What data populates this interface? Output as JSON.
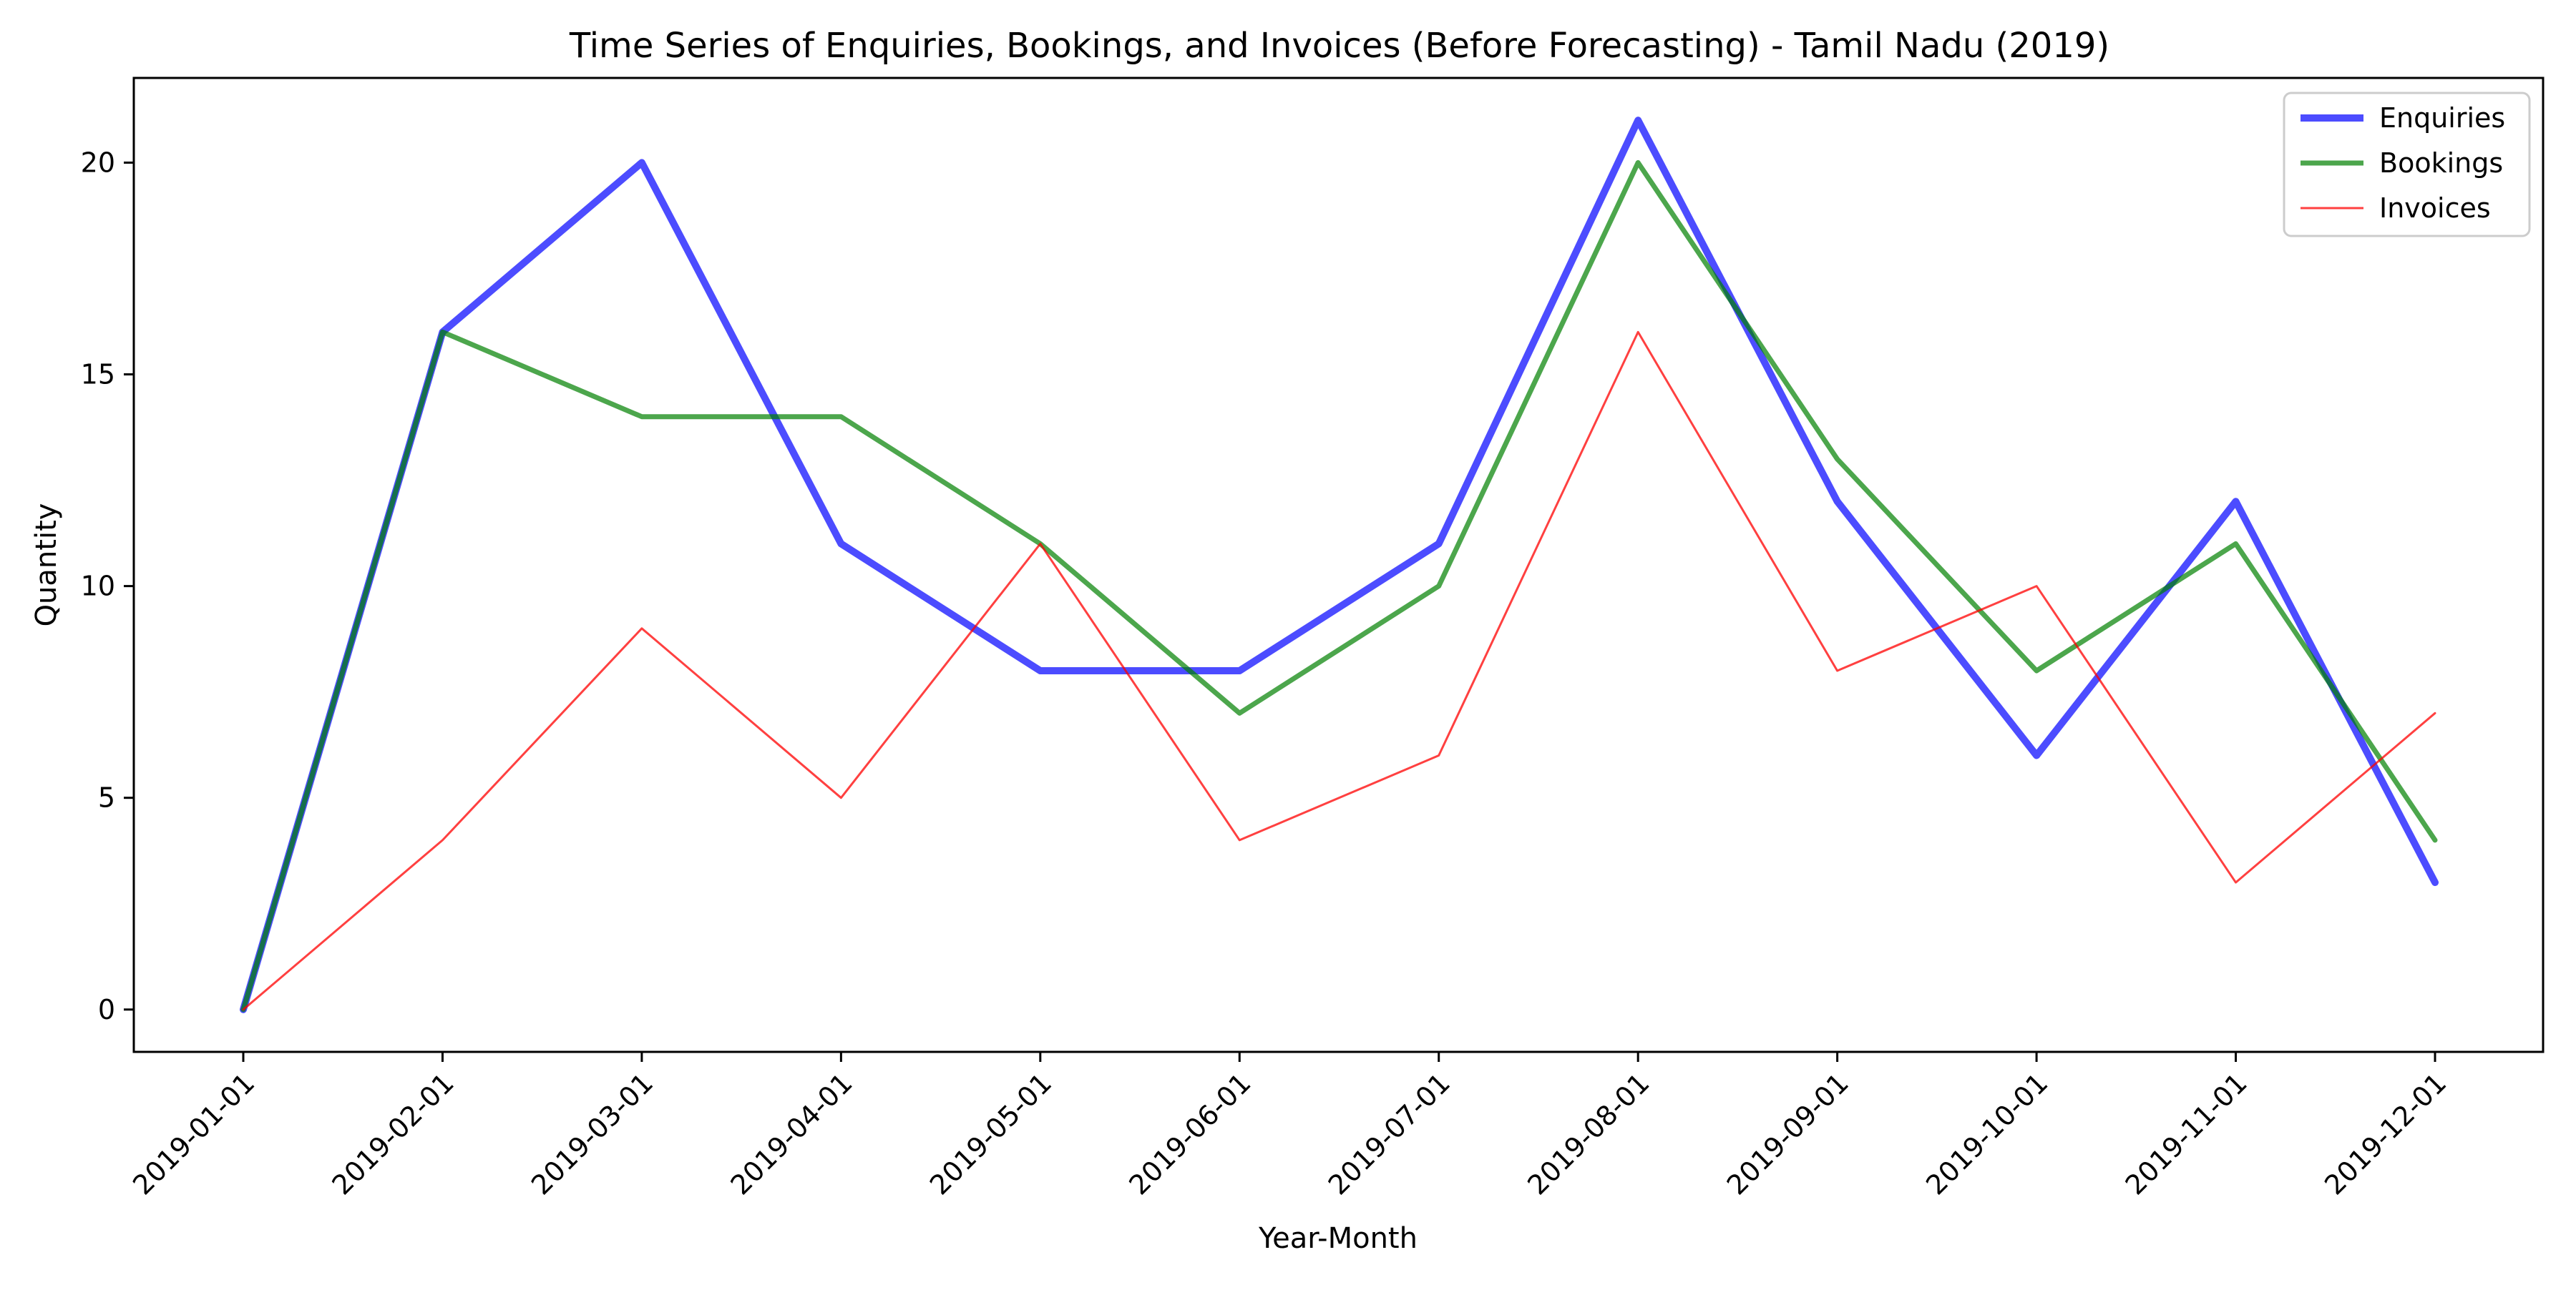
{
  "chart_data": {
    "type": "line",
    "title": "Time Series of Enquiries, Bookings, and Invoices (Before Forecasting) - Tamil Nadu (2019)",
    "xlabel": "Year-Month",
    "ylabel": "Quantity",
    "categories": [
      "2019-01-01",
      "2019-02-01",
      "2019-03-01",
      "2019-04-01",
      "2019-05-01",
      "2019-06-01",
      "2019-07-01",
      "2019-08-01",
      "2019-09-01",
      "2019-10-01",
      "2019-11-01",
      "2019-12-01"
    ],
    "yticks": [
      0,
      5,
      10,
      15,
      20
    ],
    "ylim": [
      -1,
      22
    ],
    "grid": false,
    "legend_position": "top-right",
    "series": [
      {
        "name": "Enquiries",
        "color": "#0000ff",
        "opacity": 0.7,
        "values": [
          0,
          16,
          20,
          11,
          8,
          8,
          11,
          21,
          12,
          6,
          12,
          3
        ]
      },
      {
        "name": "Bookings",
        "color": "#008000",
        "opacity": 0.7,
        "values": [
          0,
          16,
          14,
          14,
          11,
          7,
          10,
          20,
          13,
          8,
          11,
          4
        ]
      },
      {
        "name": "Invoices",
        "color": "#ff0000",
        "opacity": 0.75,
        "values": [
          0,
          4,
          9,
          5,
          11,
          4,
          6,
          16,
          8,
          10,
          3,
          7
        ]
      }
    ]
  }
}
